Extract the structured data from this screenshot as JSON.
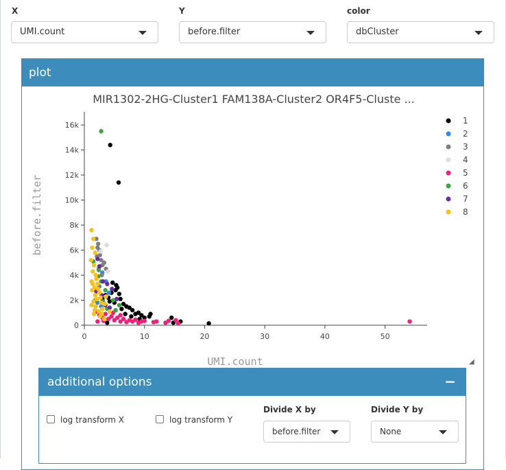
{
  "controls": {
    "x_label": "X",
    "x_value": "UMI.count",
    "y_label": "Y",
    "y_value": "before.filter",
    "color_label": "color",
    "color_value": "dbCluster"
  },
  "plot_box": {
    "title": "plot"
  },
  "additional_options": {
    "title": "additional options",
    "collapse_symbol": "−",
    "log_x_label": "log transform X",
    "log_y_label": "log transform Y",
    "divide_x_label": "Divide X by",
    "divide_x_value": "before.filter",
    "divide_y_label": "Divide Y by",
    "divide_y_value": "None"
  },
  "chart_data": {
    "type": "scatter",
    "title": "MIR1302-2HG-Cluster1 FAM138A-Cluster2 OR4F5-Cluste ...",
    "xlabel": "UMI.count",
    "ylabel": "before.filter",
    "xlim": [
      0,
      57
    ],
    "ylim": [
      0,
      16500
    ],
    "x_ticks": [
      0,
      10,
      20,
      30,
      40,
      50
    ],
    "x_tick_labels": [
      "0",
      "10",
      "20",
      "30",
      "40",
      "50"
    ],
    "y_ticks": [
      0,
      2000,
      4000,
      6000,
      8000,
      10000,
      12000,
      14000,
      16000
    ],
    "y_tick_labels": [
      "0",
      "2k",
      "4k",
      "6k",
      "8k",
      "10k",
      "12k",
      "14k",
      "16k"
    ],
    "grid": false,
    "legend_position": "right",
    "series": [
      {
        "name": "1",
        "color": "#000000",
        "points": [
          [
            4.3,
            14400
          ],
          [
            5.7,
            11400
          ],
          [
            3.5,
            2400
          ],
          [
            4.0,
            2200
          ],
          [
            4.5,
            2600
          ],
          [
            5.0,
            1800
          ],
          [
            5.5,
            3000
          ],
          [
            6.0,
            2100
          ],
          [
            6.5,
            1700
          ],
          [
            7.0,
            1500
          ],
          [
            7.5,
            1400
          ],
          [
            8.0,
            1200
          ],
          [
            8.5,
            900
          ],
          [
            9.0,
            1000
          ],
          [
            9.5,
            800
          ],
          [
            10.0,
            600
          ],
          [
            10.8,
            700
          ],
          [
            11.0,
            900
          ],
          [
            14.5,
            600
          ],
          [
            14.8,
            200
          ],
          [
            16.0,
            300
          ],
          [
            20.7,
            150
          ],
          [
            3.8,
            200
          ],
          [
            4.7,
            3400
          ],
          [
            5.2,
            2800
          ],
          [
            6.2,
            1300
          ],
          [
            5.8,
            2500
          ],
          [
            4.2,
            1900
          ],
          [
            6.8,
            900
          ],
          [
            7.8,
            700
          ],
          [
            5.3,
            3200
          ],
          [
            3.0,
            2100
          ],
          [
            9.2,
            500
          ]
        ]
      },
      {
        "name": "2",
        "color": "#2e8be0",
        "points": [
          [
            3.0,
            4200
          ],
          [
            2.5,
            3100
          ],
          [
            4.1,
            2600
          ],
          [
            2.2,
            1800
          ],
          [
            3.6,
            3500
          ],
          [
            2.8,
            1500
          ]
        ]
      },
      {
        "name": "3",
        "color": "#808080",
        "points": [
          [
            2.0,
            6900
          ],
          [
            2.3,
            6500
          ],
          [
            2.5,
            6000
          ],
          [
            2.1,
            5500
          ],
          [
            2.8,
            5200
          ],
          [
            3.0,
            4800
          ],
          [
            2.4,
            4400
          ],
          [
            3.3,
            5000
          ],
          [
            2.6,
            5600
          ],
          [
            2.2,
            6200
          ],
          [
            3.6,
            4500
          ],
          [
            2.9,
            4000
          ]
        ]
      },
      {
        "name": "4",
        "color": "#dddddd",
        "points": [
          [
            3.7,
            6400
          ],
          [
            2.7,
            5900
          ],
          [
            3.9,
            4300
          ]
        ]
      },
      {
        "name": "5",
        "color": "#f0207a",
        "points": [
          [
            54.1,
            300
          ],
          [
            3.0,
            600
          ],
          [
            4.0,
            500
          ],
          [
            5.0,
            400
          ],
          [
            6.0,
            300
          ],
          [
            7.0,
            250
          ],
          [
            8.0,
            300
          ],
          [
            9.0,
            200
          ],
          [
            10.0,
            350
          ],
          [
            12.0,
            300
          ],
          [
            14.0,
            350
          ],
          [
            15.2,
            400
          ],
          [
            15.6,
            150
          ],
          [
            2.0,
            1100
          ],
          [
            2.5,
            800
          ],
          [
            3.5,
            900
          ],
          [
            4.5,
            700
          ],
          [
            5.5,
            600
          ],
          [
            6.5,
            500
          ],
          [
            7.5,
            400
          ],
          [
            8.5,
            450
          ],
          [
            9.5,
            300
          ],
          [
            11.5,
            250
          ],
          [
            13.5,
            200
          ],
          [
            2.2,
            300
          ],
          [
            3.2,
            350
          ],
          [
            4.8,
            1000
          ],
          [
            6.0,
            800
          ]
        ]
      },
      {
        "name": "6",
        "color": "#3aa640",
        "points": [
          [
            2.8,
            15500
          ],
          [
            1.5,
            5100
          ],
          [
            2.4,
            4500
          ],
          [
            2.8,
            3500
          ],
          [
            3.5,
            2800
          ],
          [
            4.8,
            2000
          ],
          [
            5.8,
            1600
          ],
          [
            1.8,
            2000
          ],
          [
            3.8,
            1300
          ],
          [
            5.2,
            1200
          ],
          [
            2.3,
            3900
          ],
          [
            3.1,
            1900
          ]
        ]
      },
      {
        "name": "7",
        "color": "#6a2ea1",
        "points": [
          [
            2.2,
            5300
          ],
          [
            2.5,
            4700
          ],
          [
            3.1,
            3500
          ],
          [
            3.8,
            3300
          ],
          [
            4.6,
            2900
          ],
          [
            5.4,
            2100
          ],
          [
            2.9,
            2400
          ],
          [
            3.5,
            1600
          ],
          [
            4.2,
            1400
          ],
          [
            2.0,
            2700
          ]
        ]
      },
      {
        "name": "8",
        "color": "#f7c11e",
        "points": [
          [
            1.2,
            7600
          ],
          [
            1.5,
            6900
          ],
          [
            1.3,
            6200
          ],
          [
            1.8,
            5800
          ],
          [
            1.1,
            5200
          ],
          [
            1.6,
            4800
          ],
          [
            1.4,
            4300
          ],
          [
            1.9,
            4000
          ],
          [
            1.2,
            3500
          ],
          [
            2.2,
            3300
          ],
          [
            1.7,
            3000
          ],
          [
            1.3,
            2800
          ],
          [
            2.5,
            2600
          ],
          [
            1.8,
            2400
          ],
          [
            2.1,
            2100
          ],
          [
            1.5,
            1900
          ],
          [
            2.8,
            1800
          ],
          [
            1.9,
            1500
          ],
          [
            3.0,
            1300
          ],
          [
            2.4,
            1100
          ],
          [
            1.6,
            900
          ],
          [
            2.6,
            700
          ],
          [
            3.3,
            500
          ],
          [
            1.4,
            3300
          ],
          [
            2.0,
            3700
          ],
          [
            2.7,
            2200
          ],
          [
            3.4,
            1700
          ],
          [
            1.2,
            1600
          ],
          [
            2.3,
            2900
          ],
          [
            3.6,
            2300
          ],
          [
            4.2,
            1100
          ],
          [
            1.7,
            1200
          ],
          [
            2.9,
            900
          ]
        ]
      }
    ]
  }
}
